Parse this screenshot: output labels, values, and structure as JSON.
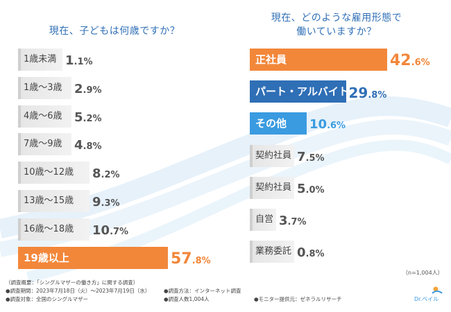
{
  "charts": {
    "left": {
      "title": "現在、子どもは何歳ですか？"
    },
    "right": {
      "title": "現在、どのような雇用形態で\n働いていますか？"
    }
  },
  "chart_data": [
    {
      "type": "bar",
      "orientation": "horizontal",
      "title": "現在、子どもは何歳ですか？",
      "unit": "%",
      "categories": [
        "1歳未満",
        "1歳〜3歳",
        "4歳〜6歳",
        "7歳〜9歳",
        "10歳〜12歳",
        "13歳〜15歳",
        "16歳〜18歳",
        "19歳以上"
      ],
      "values": [
        1.1,
        2.9,
        5.2,
        4.8,
        8.2,
        9.3,
        10.7,
        57.8
      ],
      "highlight": [
        "normal",
        "normal",
        "normal",
        "normal",
        "normal",
        "normal",
        "normal",
        "orange"
      ],
      "xlim": [
        0,
        57.8
      ]
    },
    {
      "type": "bar",
      "orientation": "horizontal",
      "title": "現在、どのような雇用形態で働いていますか？",
      "unit": "%",
      "categories": [
        "正社員",
        "パート・アルバイト",
        "その他",
        "契約社員",
        "契約社員",
        "自営",
        "業務委託"
      ],
      "values": [
        42.6,
        29.8,
        10.6,
        7.5,
        5.0,
        3.7,
        0.8
      ],
      "highlight": [
        "orange",
        "blue",
        "lblue",
        "normal",
        "normal",
        "normal",
        "normal"
      ],
      "xlim": [
        0,
        42.6
      ]
    }
  ],
  "colors": {
    "orange": "#f2873a",
    "blue": "#2f6fb6",
    "lblue": "#3a9be0",
    "gray": "#d9d9d9",
    "gray_edge": "#b0b0b0",
    "title": "#2f6fb6"
  },
  "note_n": "（n=1,004人）",
  "footer": {
    "line1": "（調査概要：「シングルマザーの働き方」に関する調査）",
    "period": "●調査期間：2023年7月18日（火）〜2023年7月19日（水）",
    "method": "●調査方法：インターネット調査",
    "target": "●調査対象：全国のシングルマザー",
    "count": "●調査人数1,004人",
    "provider": "●モニター提供元：ゼネラルリサーチ"
  },
  "logo_text": "Dr.ベイル"
}
